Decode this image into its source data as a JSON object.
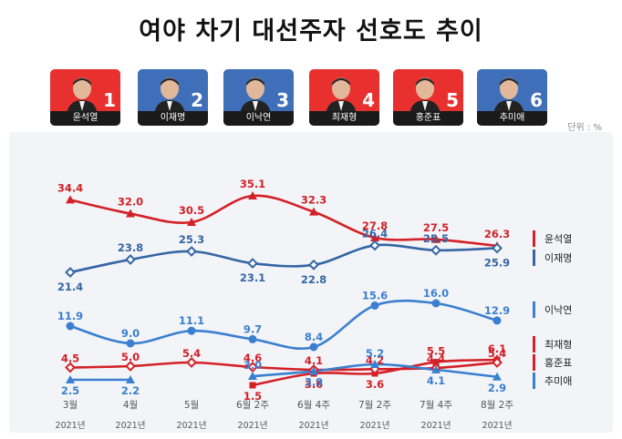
{
  "title": "여야 차기 대선주자 선호도 추이",
  "unit": "단위 : %",
  "candidates": [
    {
      "rank": "1",
      "name": "윤석열",
      "bg": "#e8312f"
    },
    {
      "rank": "2",
      "name": "이재명",
      "bg": "#3e6fb8"
    },
    {
      "rank": "3",
      "name": "이낙연",
      "bg": "#3e6fb8"
    },
    {
      "rank": "4",
      "name": "최재형",
      "bg": "#e8312f"
    },
    {
      "rank": "5",
      "name": "홍준표",
      "bg": "#e8312f"
    },
    {
      "rank": "6",
      "name": "추미애",
      "bg": "#3e6fb8"
    }
  ],
  "chart_data": {
    "type": "line",
    "title": "여야 차기 대선주자 선호도 추이",
    "unit": "단위 : %",
    "categories": [
      {
        "label": "3월",
        "year": "2021년"
      },
      {
        "label": "4월",
        "year": "2021년"
      },
      {
        "label": "5월",
        "year": "2021년"
      },
      {
        "label": "6월 2주",
        "year": "2021년"
      },
      {
        "label": "6월 4주",
        "year": "2021년"
      },
      {
        "label": "7월 2주",
        "year": "2021년"
      },
      {
        "label": "7월 4주",
        "year": "2021년"
      },
      {
        "label": "8월 2주",
        "year": "2021년"
      }
    ],
    "series": [
      {
        "name": "윤석열",
        "color": "#d42027",
        "marker": "triangle",
        "values": [
          34.4,
          32.0,
          30.5,
          35.1,
          32.3,
          27.8,
          27.5,
          26.3
        ]
      },
      {
        "name": "이재명",
        "color": "#3465a4",
        "marker": "diamond",
        "values": [
          21.4,
          23.8,
          25.3,
          23.1,
          22.8,
          26.4,
          25.5,
          25.9
        ]
      },
      {
        "name": "이낙연",
        "color": "#3a7fd0",
        "marker": "circle",
        "values": [
          11.9,
          9.0,
          11.1,
          9.7,
          8.4,
          15.6,
          16.0,
          12.9
        ]
      },
      {
        "name": "최재형",
        "color": "#d42027",
        "marker": "square",
        "values": [
          null,
          null,
          null,
          1.5,
          3.6,
          3.6,
          5.5,
          6.1
        ]
      },
      {
        "name": "홍준표",
        "color": "#d42027",
        "marker": "diamond",
        "values": [
          4.5,
          5.0,
          5.4,
          4.6,
          4.1,
          4.2,
          4.4,
          5.4
        ]
      },
      {
        "name": "추미애",
        "color": "#3a7fd0",
        "marker": "triangle",
        "values": [
          2.5,
          2.2,
          null,
          3.0,
          3.9,
          5.2,
          4.1,
          2.9
        ]
      }
    ]
  }
}
